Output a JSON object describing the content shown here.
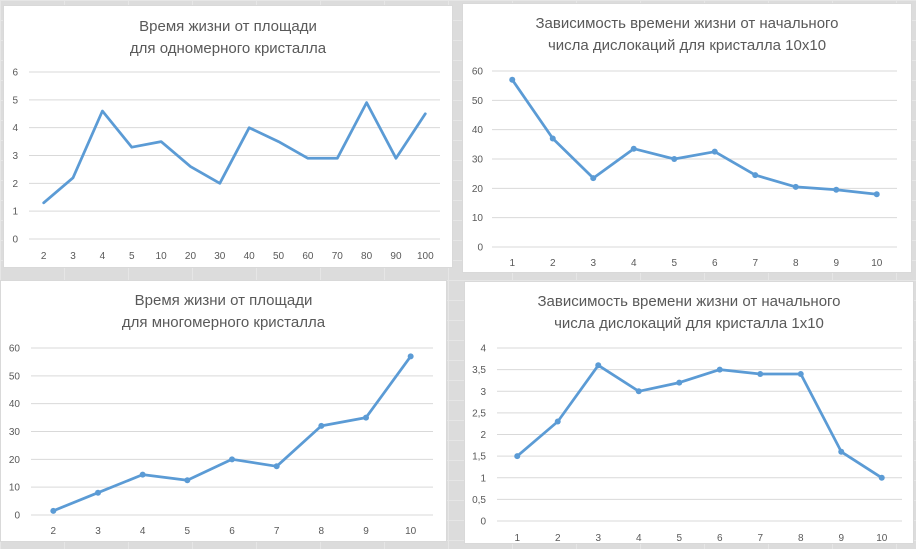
{
  "chart_data": [
    {
      "type": "line",
      "title_line1": "Время жизни от площади",
      "title_line2": "для одномерного кристалла",
      "xlabel": "",
      "ylabel": "",
      "categories": [
        "2",
        "3",
        "4",
        "5",
        "10",
        "20",
        "30",
        "40",
        "50",
        "60",
        "70",
        "80",
        "90",
        "100"
      ],
      "series": [
        {
          "values": [
            1.3,
            2.2,
            4.6,
            3.3,
            3.5,
            2.6,
            2.0,
            4.0,
            3.5,
            2.9,
            2.9,
            4.9,
            2.9,
            4.5
          ]
        }
      ],
      "ylim": [
        0,
        6
      ],
      "yticks": [
        0,
        1,
        2,
        3,
        4,
        5,
        6
      ],
      "markers": false,
      "grid": true,
      "legend": "none"
    },
    {
      "type": "line",
      "title_line1": "Зависимость времени жизни от начального",
      "title_line2": "числа дислокаций для кристалла 10x10",
      "xlabel": "",
      "ylabel": "",
      "categories": [
        "1",
        "2",
        "3",
        "4",
        "5",
        "6",
        "7",
        "8",
        "9",
        "10"
      ],
      "series": [
        {
          "values": [
            57,
            37,
            23.5,
            33.5,
            30,
            32.5,
            24.5,
            20.5,
            19.5,
            18
          ]
        }
      ],
      "ylim": [
        0,
        60
      ],
      "yticks": [
        0,
        10,
        20,
        30,
        40,
        50,
        60
      ],
      "markers": true,
      "grid": true,
      "legend": "none"
    },
    {
      "type": "line",
      "title_line1": "Время жизни от площади",
      "title_line2": "для многомерного кристалла",
      "xlabel": "",
      "ylabel": "",
      "categories": [
        "2",
        "3",
        "4",
        "5",
        "6",
        "7",
        "8",
        "9",
        "10"
      ],
      "series": [
        {
          "values": [
            1.5,
            8,
            14.5,
            12.5,
            20,
            17.5,
            32,
            35,
            57
          ]
        }
      ],
      "ylim": [
        0,
        60
      ],
      "yticks": [
        0,
        10,
        20,
        30,
        40,
        50,
        60
      ],
      "markers": true,
      "grid": true,
      "legend": "none"
    },
    {
      "type": "line",
      "title_line1": "Зависимость времени жизни от начального",
      "title_line2": "числа дислокаций для кристалла 1x10",
      "xlabel": "",
      "ylabel": "",
      "categories": [
        "1",
        "2",
        "3",
        "4",
        "5",
        "6",
        "7",
        "8",
        "9",
        "10"
      ],
      "series": [
        {
          "values": [
            1.5,
            2.3,
            3.6,
            3.0,
            3.2,
            3.5,
            3.4,
            3.4,
            1.6,
            1.0
          ]
        }
      ],
      "ylim": [
        0,
        4
      ],
      "yticks": [
        "0",
        "0,5",
        "1",
        "1,5",
        "2",
        "2,5",
        "3",
        "3,5",
        "4"
      ],
      "markers": true,
      "grid": true,
      "legend": "none"
    }
  ],
  "colors": {
    "series": "#5b9bd5",
    "grid": "#d9d9d9",
    "text": "#595959"
  }
}
